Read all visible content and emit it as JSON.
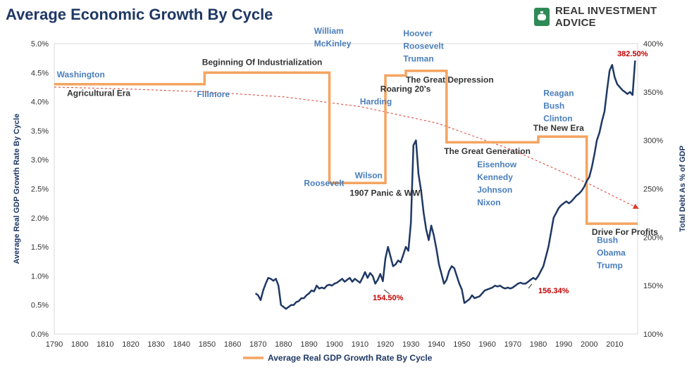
{
  "header": {
    "title": "Average Economic Growth By Cycle",
    "logo_text": "REAL INVESTMENT ADVICE",
    "logo_icon": "piggy-bank-icon"
  },
  "chart_data": {
    "type": "line",
    "x_ticks": [
      1790,
      1800,
      1810,
      1820,
      1830,
      1840,
      1850,
      1860,
      1870,
      1880,
      1890,
      1900,
      1910,
      1920,
      1930,
      1940,
      1950,
      1960,
      1970,
      1980,
      1990,
      2000,
      2010
    ],
    "xlim": [
      1790,
      2019
    ],
    "y_left": {
      "label": "Average Real GDP Growth Rate By Cycle",
      "ticks": [
        "0.0%",
        "0.5%",
        "1.0%",
        "1.5%",
        "2.0%",
        "2.5%",
        "3.0%",
        "3.5%",
        "4.0%",
        "4.5%",
        "5.0%"
      ],
      "ylim": [
        0,
        5
      ]
    },
    "y_right": {
      "label": "Total Debt As % of GDP",
      "ticks": [
        "100%",
        "150%",
        "200%",
        "250%",
        "300%",
        "350%",
        "400%"
      ],
      "ylim": [
        100,
        400
      ]
    },
    "series": [
      {
        "name": "Average Real GDP Growth Rate By Cycle",
        "axis": "left",
        "color": "#f4a460",
        "step_points": [
          [
            1790,
            4.3
          ],
          [
            1849,
            4.3
          ],
          [
            1849,
            4.5
          ],
          [
            1898,
            4.5
          ],
          [
            1898,
            2.6
          ],
          [
            1920,
            2.6
          ],
          [
            1920,
            4.45
          ],
          [
            1928,
            4.45
          ],
          [
            1928,
            4.53
          ],
          [
            1944,
            4.53
          ],
          [
            1944,
            3.3
          ],
          [
            1980,
            3.3
          ],
          [
            1980,
            3.4
          ],
          [
            1999,
            3.4
          ],
          [
            1999,
            1.9
          ],
          [
            2019,
            1.9
          ]
        ]
      },
      {
        "axis": "right",
        "color": "#1f3864",
        "points": [
          [
            1869,
            142
          ],
          [
            1870,
            140
          ],
          [
            1871,
            135
          ],
          [
            1872,
            145
          ],
          [
            1873,
            152
          ],
          [
            1874,
            158
          ],
          [
            1875,
            157
          ],
          [
            1876,
            155
          ],
          [
            1877,
            157
          ],
          [
            1878,
            150
          ],
          [
            1879,
            130
          ],
          [
            1880,
            128
          ],
          [
            1881,
            126
          ],
          [
            1882,
            128
          ],
          [
            1883,
            130
          ],
          [
            1884,
            130
          ],
          [
            1885,
            133
          ],
          [
            1886,
            134
          ],
          [
            1887,
            137
          ],
          [
            1888,
            137
          ],
          [
            1889,
            140
          ],
          [
            1890,
            142
          ],
          [
            1891,
            145
          ],
          [
            1892,
            144
          ],
          [
            1893,
            150
          ],
          [
            1894,
            147
          ],
          [
            1895,
            148
          ],
          [
            1896,
            147
          ],
          [
            1897,
            150
          ],
          [
            1898,
            151
          ],
          [
            1899,
            150
          ],
          [
            1900,
            152
          ],
          [
            1901,
            153
          ],
          [
            1902,
            155
          ],
          [
            1903,
            157
          ],
          [
            1904,
            154
          ],
          [
            1905,
            156
          ],
          [
            1906,
            158
          ],
          [
            1907,
            154
          ],
          [
            1908,
            157
          ],
          [
            1909,
            155
          ],
          [
            1910,
            153
          ],
          [
            1911,
            158
          ],
          [
            1912,
            164
          ],
          [
            1913,
            158
          ],
          [
            1914,
            163
          ],
          [
            1915,
            160
          ],
          [
            1916,
            152
          ],
          [
            1917,
            156
          ],
          [
            1918,
            162
          ],
          [
            1919,
            154.5
          ],
          [
            1920,
            178
          ],
          [
            1921,
            190
          ],
          [
            1922,
            180
          ],
          [
            1923,
            170
          ],
          [
            1924,
            172
          ],
          [
            1925,
            176
          ],
          [
            1926,
            174
          ],
          [
            1927,
            182
          ],
          [
            1928,
            190
          ],
          [
            1929,
            186
          ],
          [
            1930,
            215
          ],
          [
            1931,
            295
          ],
          [
            1932,
            300
          ],
          [
            1933,
            265
          ],
          [
            1934,
            248
          ],
          [
            1935,
            225
          ],
          [
            1936,
            208
          ],
          [
            1937,
            197
          ],
          [
            1938,
            212
          ],
          [
            1939,
            202
          ],
          [
            1940,
            188
          ],
          [
            1941,
            172
          ],
          [
            1942,
            162
          ],
          [
            1943,
            152
          ],
          [
            1944,
            156
          ],
          [
            1945,
            165
          ],
          [
            1946,
            170
          ],
          [
            1947,
            168
          ],
          [
            1948,
            160
          ],
          [
            1949,
            152
          ],
          [
            1950,
            146
          ],
          [
            1951,
            132
          ],
          [
            1952,
            134
          ],
          [
            1953,
            136
          ],
          [
            1954,
            140
          ],
          [
            1955,
            137
          ],
          [
            1956,
            138
          ],
          [
            1957,
            139
          ],
          [
            1958,
            142
          ],
          [
            1959,
            145
          ],
          [
            1960,
            146
          ],
          [
            1961,
            147
          ],
          [
            1962,
            148
          ],
          [
            1963,
            150
          ],
          [
            1964,
            149
          ],
          [
            1965,
            150
          ],
          [
            1966,
            148
          ],
          [
            1967,
            147
          ],
          [
            1968,
            148
          ],
          [
            1969,
            147
          ],
          [
            1970,
            148
          ],
          [
            1971,
            150
          ],
          [
            1972,
            152
          ],
          [
            1973,
            153
          ],
          [
            1974,
            152
          ],
          [
            1975,
            152
          ],
          [
            1976,
            154
          ],
          [
            1977,
            156
          ],
          [
            1978,
            158
          ],
          [
            1979,
            156.34
          ],
          [
            1980,
            160
          ],
          [
            1981,
            165
          ],
          [
            1982,
            170
          ],
          [
            1983,
            180
          ],
          [
            1984,
            190
          ],
          [
            1985,
            205
          ],
          [
            1986,
            220
          ],
          [
            1987,
            225
          ],
          [
            1988,
            230
          ],
          [
            1989,
            233
          ],
          [
            1990,
            235
          ],
          [
            1991,
            237
          ],
          [
            1992,
            235
          ],
          [
            1993,
            237
          ],
          [
            1994,
            240
          ],
          [
            1995,
            243
          ],
          [
            1996,
            245
          ],
          [
            1997,
            248
          ],
          [
            1998,
            252
          ],
          [
            1999,
            258
          ],
          [
            2000,
            262
          ],
          [
            2001,
            272
          ],
          [
            2002,
            285
          ],
          [
            2003,
            300
          ],
          [
            2004,
            308
          ],
          [
            2005,
            320
          ],
          [
            2006,
            330
          ],
          [
            2007,
            352
          ],
          [
            2008,
            372
          ],
          [
            2009,
            378
          ],
          [
            2010,
            365
          ],
          [
            2011,
            358
          ],
          [
            2012,
            355
          ],
          [
            2013,
            352
          ],
          [
            2014,
            350
          ],
          [
            2015,
            348
          ],
          [
            2016,
            350
          ],
          [
            2017,
            347
          ],
          [
            2018,
            382.5
          ]
        ]
      },
      {
        "axis": "right",
        "style": "dashed-trend",
        "color": "#e0392b",
        "points": [
          [
            1790,
            355
          ],
          [
            1820,
            353
          ],
          [
            1850,
            350
          ],
          [
            1880,
            345
          ],
          [
            1910,
            335
          ],
          [
            1940,
            318
          ],
          [
            1970,
            290
          ],
          [
            2000,
            255
          ],
          [
            2019,
            230
          ]
        ]
      }
    ],
    "annotations": {
      "cycles": [
        {
          "text": "Agricultural Era",
          "x": 1795,
          "y": 4.1,
          "color": "dark"
        },
        {
          "text": "Beginning Of Industrialization",
          "x": 1848,
          "y": 4.63,
          "color": "dark"
        },
        {
          "text": "1907 Panic & WWI",
          "x": 1906,
          "y": 2.38,
          "color": "dark"
        },
        {
          "text": "Roaring 20's",
          "x": 1918,
          "y": 4.17,
          "color": "dark"
        },
        {
          "text": "The Great Depression",
          "x": 1928,
          "y": 4.33,
          "color": "dark"
        },
        {
          "text": "The Great Generation",
          "x": 1943,
          "y": 3.1,
          "color": "dark"
        },
        {
          "text": "The New Era",
          "x": 1978,
          "y": 3.5,
          "color": "dark"
        },
        {
          "text": "Drive For Profits",
          "x": 2001,
          "y": 1.71,
          "color": "dark"
        }
      ],
      "presidents": [
        {
          "lines": [
            "Washington"
          ],
          "x": 1791,
          "y": 4.42
        },
        {
          "lines": [
            "Fillmore"
          ],
          "x": 1846,
          "y": 4.08
        },
        {
          "lines": [
            "William",
            "McKinley"
          ],
          "x": 1892,
          "y": 5.17
        },
        {
          "lines": [
            "Roosevelt"
          ],
          "x": 1888,
          "y": 2.55
        },
        {
          "lines": [
            "Wilson"
          ],
          "x": 1908,
          "y": 2.68
        },
        {
          "lines": [
            "Harding"
          ],
          "x": 1910,
          "y": 3.95
        },
        {
          "lines": [
            "Hoover",
            "Roosevelt",
            "Truman"
          ],
          "x": 1927,
          "y": 5.13
        },
        {
          "lines": [
            "Reagan",
            "Bush",
            "Clinton"
          ],
          "x": 1982,
          "y": 4.1
        },
        {
          "lines": [
            "Eisenhow",
            "Kennedy",
            "Johnson",
            "Nixon"
          ],
          "x": 1956,
          "y": 2.87
        },
        {
          "lines": [
            "Bush",
            "Obama",
            "Trump"
          ],
          "x": 2003,
          "y": 1.57
        }
      ],
      "values": [
        {
          "text": "154.50%",
          "x": 1915,
          "y_right": 135
        },
        {
          "text": "156.34%",
          "x": 1980,
          "y_right": 142
        },
        {
          "text": "382.50%",
          "x": 2011,
          "y_right": 387
        }
      ]
    }
  },
  "legend": {
    "label": "Average Real GDP Growth Rate By Cycle",
    "position": "bottom"
  }
}
